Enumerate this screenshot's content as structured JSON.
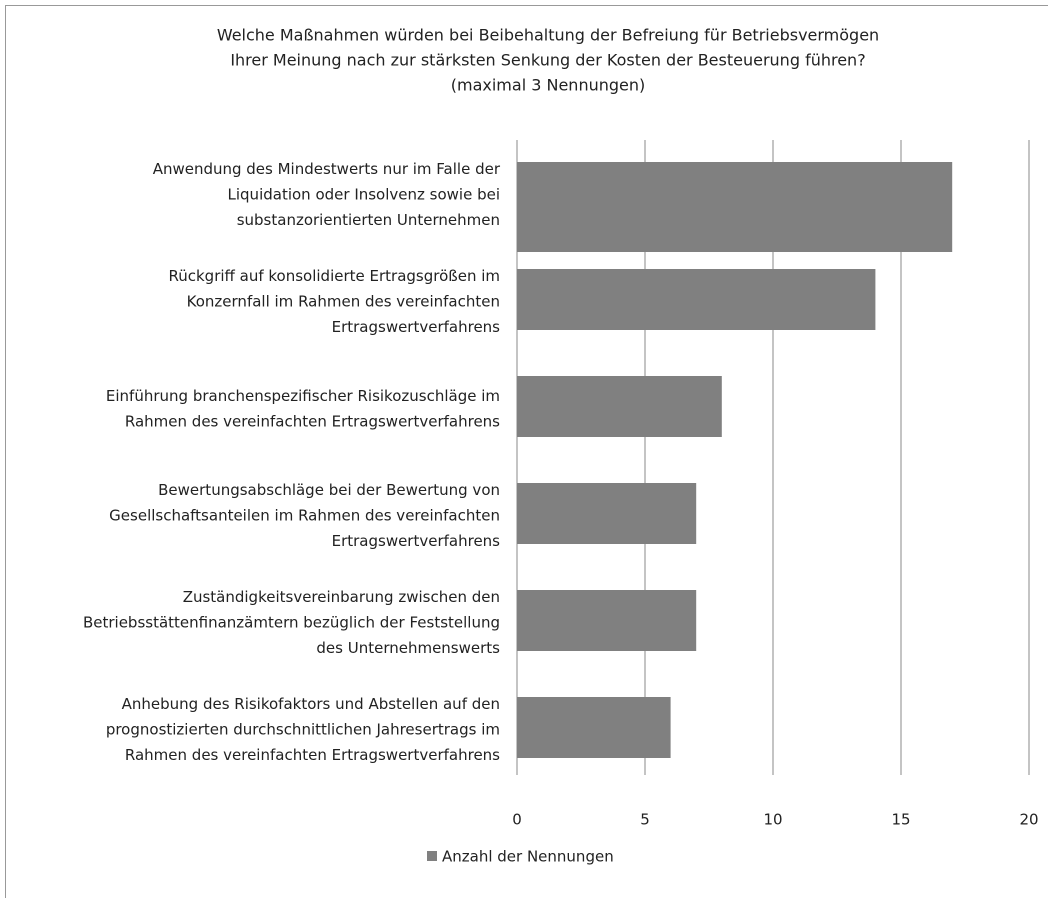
{
  "chart_data": {
    "type": "bar",
    "orientation": "horizontal",
    "title": [
      "Welche Maßnahmen würden bei Beibehaltung der Befreiung für Betriebsvermögen",
      "Ihrer Meinung nach zur stärksten Senkung der Kosten der Besteuerung führen?",
      "(maximal 3 Nennungen)"
    ],
    "categories": [
      [
        "Anwendung des Mindestwerts nur im Falle der",
        "Liquidation oder Insolvenz sowie bei",
        "substanzorientierten Unternehmen"
      ],
      [
        "Rückgriff auf konsolidierte Ertragsgrößen im",
        "Konzernfall im Rahmen des vereinfachten",
        "Ertragswertverfahrens"
      ],
      [
        "Einführung branchenspezifischer Risikozuschläge im",
        "Rahmen des vereinfachten Ertragswertverfahrens"
      ],
      [
        "Bewertungsabschläge bei der Bewertung von",
        "Gesellschaftsanteilen im Rahmen des vereinfachten",
        "Ertragswertverfahrens"
      ],
      [
        "Zuständigkeitsvereinbarung zwischen den",
        "Betriebsstättenfinanzämtern bezüglich der Feststellung",
        "des Unternehmenswerts"
      ],
      [
        "Anhebung des Risikofaktors und  Abstellen auf den",
        "prognostizierten durchschnittlichen Jahresertrags im",
        "Rahmen des vereinfachten Ertragswertverfahrens"
      ]
    ],
    "series": [
      {
        "name": "Anzahl der Nennungen",
        "color": "#808080",
        "values": [
          17,
          14,
          8,
          7,
          7,
          6
        ]
      }
    ],
    "xlim": [
      0,
      20
    ],
    "xticks": [
      0,
      5,
      10,
      15,
      20
    ],
    "grid": true,
    "legend": "bottom"
  }
}
